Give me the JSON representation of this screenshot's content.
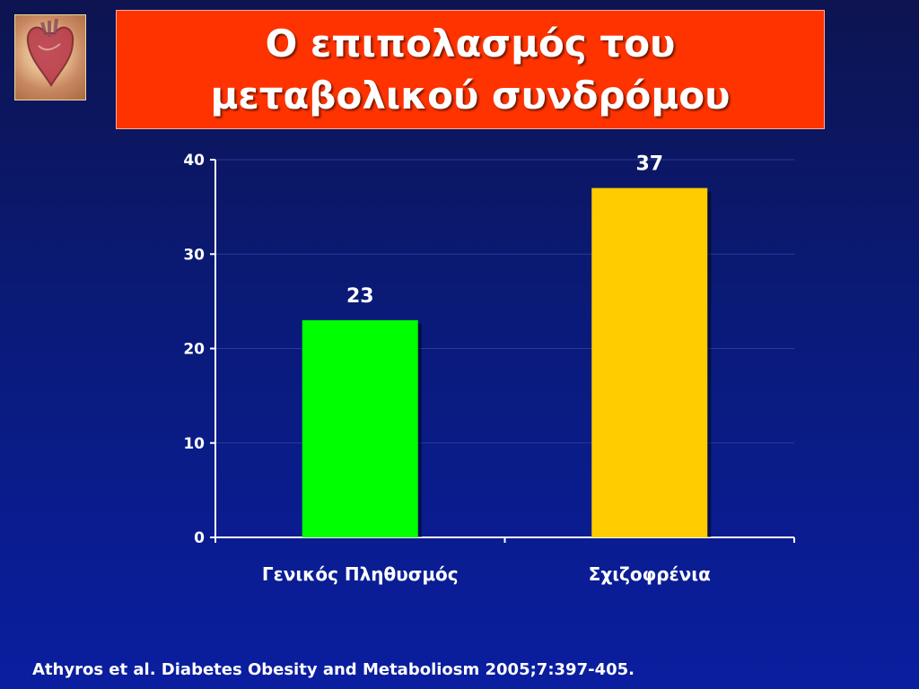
{
  "logo": {
    "icon": "heart-anatomy-icon"
  },
  "title": {
    "line1": "Ο επιπολασμός του",
    "line2": "μεταβολικού συνδρόμου",
    "background": "#ff3300"
  },
  "chart_data": {
    "type": "bar",
    "categories": [
      "Γενικός Πληθυσμός",
      "Σχιζοφρένια"
    ],
    "values": [
      23,
      37
    ],
    "colors": [
      "#00ff00",
      "#ffcc00"
    ],
    "data_labels": [
      "23",
      "37"
    ],
    "title": "",
    "xlabel": "",
    "ylabel": "",
    "ylim": [
      0,
      40
    ],
    "yticks": [
      0,
      10,
      20,
      30,
      40
    ],
    "grid": true,
    "legend": "none"
  },
  "citation": "Athyros et al. Diabetes Obesity and Metaboliosm 2005;7:397-405."
}
